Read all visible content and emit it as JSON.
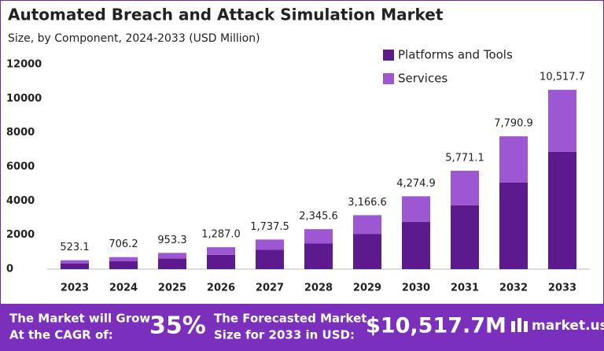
{
  "chart_data": {
    "type": "stacked_bar",
    "title": "Automated Breach and Attack Simulation Market",
    "subtitle": "Size, by Component, 2024-2033 (USD Million)",
    "categories": [
      "2023",
      "2024",
      "2025",
      "2026",
      "2027",
      "2028",
      "2029",
      "2030",
      "2031",
      "2032",
      "2033"
    ],
    "series": [
      {
        "name": "Platforms and Tools",
        "color": "#5c1a8f",
        "values": [
          340,
          460,
          620,
          840,
          1130,
          1500,
          2070,
          2780,
          3750,
          5080,
          6880
        ]
      },
      {
        "name": "Services",
        "color": "#9d57d3",
        "values": [
          183.1,
          246.2,
          333.3,
          447.0,
          607.5,
          845.6,
          1096.6,
          1494.9,
          2021.1,
          2710.9,
          3637.7
        ]
      }
    ],
    "totals": [
      523.1,
      706.2,
      953.3,
      1287.0,
      1737.5,
      2345.6,
      3166.6,
      4274.9,
      5771.1,
      7790.9,
      10517.7
    ],
    "total_labels": [
      "523.1",
      "706.2",
      "953.3",
      "1,287.0",
      "1,737.5",
      "2,345.6",
      "3,166.6",
      "4,274.9",
      "5,771.1",
      "7,790.9",
      "10,517.7"
    ],
    "ylim": [
      0,
      12000
    ],
    "yticks": [
      0,
      2000,
      4000,
      6000,
      8000,
      10000,
      12000
    ],
    "grid": false,
    "legend": "top-right"
  },
  "footer": {
    "cagr_line1": "The Market will Grow",
    "cagr_line2": "At the CAGR of:",
    "cagr": "35%",
    "forecast_line1": "The Forecasted Market",
    "forecast_line2": "Size for 2033 in USD:",
    "forecast": "$10,517.7M",
    "brand": "market.us"
  }
}
